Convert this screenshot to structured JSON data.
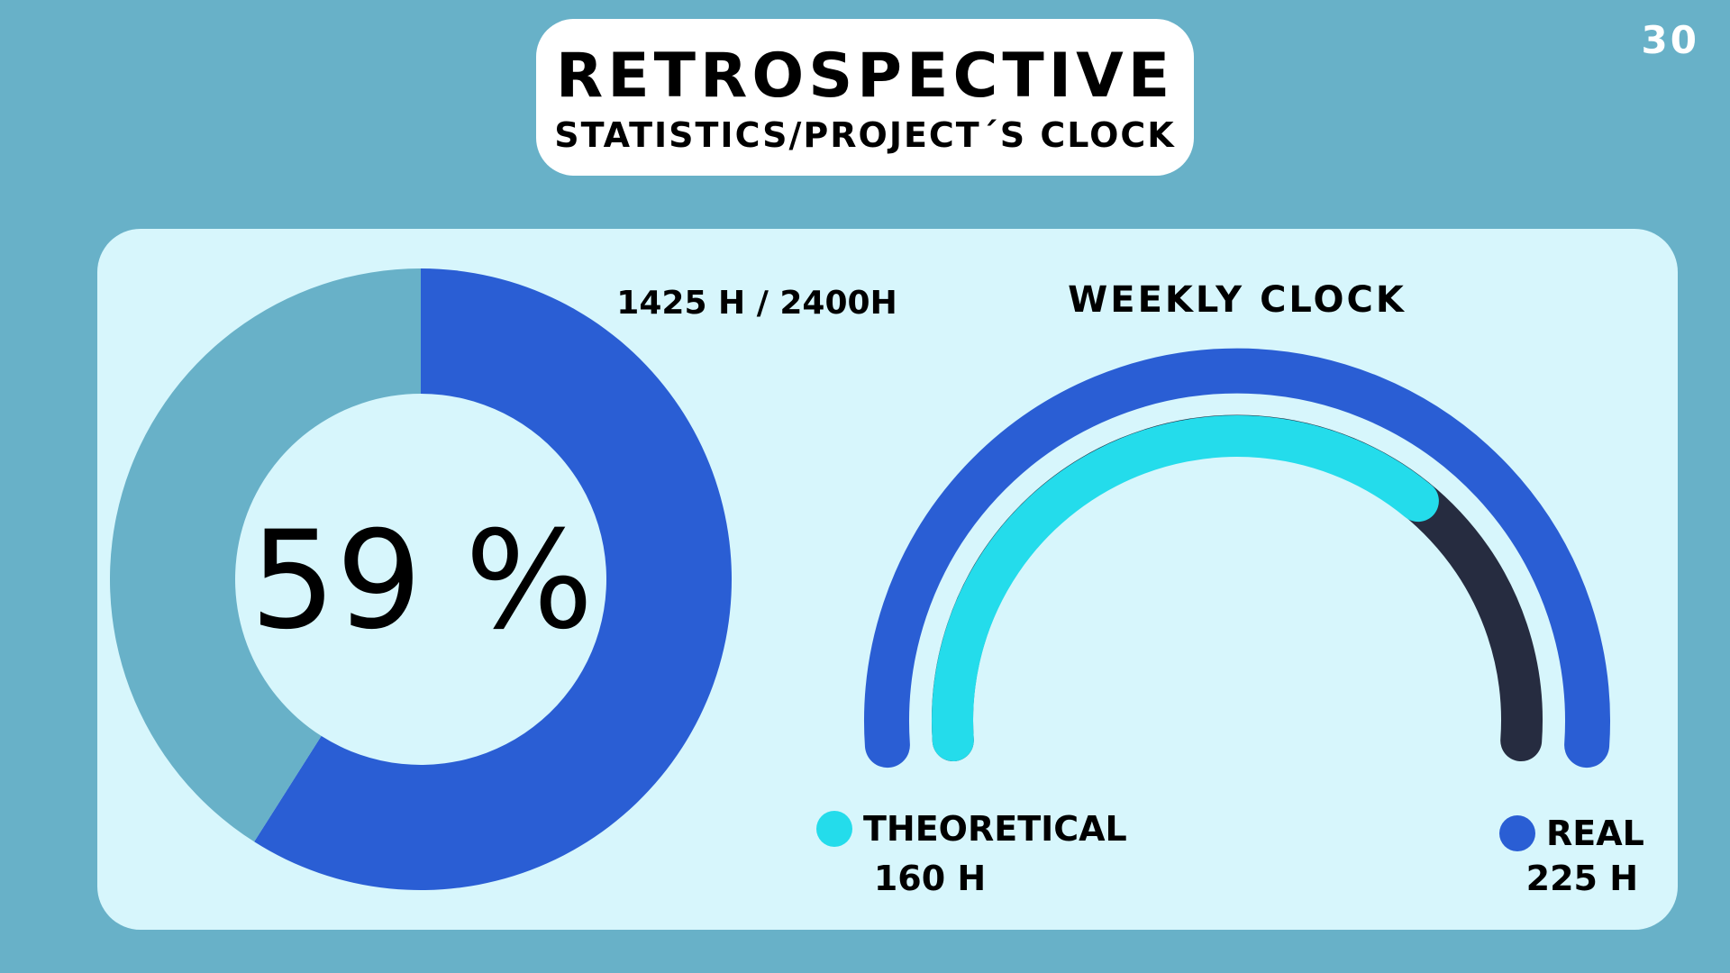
{
  "header": {
    "title": "RETROSPECTIVE",
    "subtitle": "STATISTICS/PROJECT´S CLOCK"
  },
  "page_number": "30",
  "colors": {
    "background": "#68b1c8",
    "panel": "#d7f6fc",
    "donut_filled": "#2a5ed4",
    "donut_remaining": "#68b1c8",
    "gauge_real": "#2a5ed4",
    "gauge_theoretical": "#24dceb",
    "gauge_track": "#262c40"
  },
  "chart_data": [
    {
      "type": "pie",
      "title": "",
      "center_label": "59 %",
      "annotation": "1425 H / 2400H",
      "slices": [
        {
          "label": "",
          "value": 59
        },
        {
          "label": "",
          "value": 41
        }
      ]
    },
    {
      "type": "gauge",
      "title": "WEEKLY CLOCK",
      "series": [
        {
          "name": "THEORETICAL",
          "value_label": "160 H",
          "fill_fraction": 0.71
        },
        {
          "name": "REAL",
          "value_label": "225 H",
          "fill_fraction": 1.0
        }
      ]
    }
  ]
}
